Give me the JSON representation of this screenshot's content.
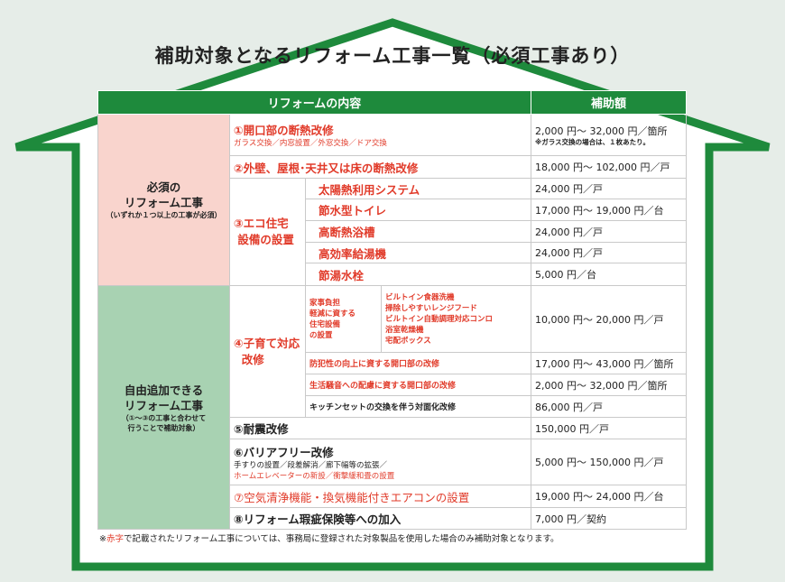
{
  "title": "補助対象となるリフォーム工事一覧（必須工事あり）",
  "colors": {
    "house": "#1e8a3c",
    "header": "#1e8a3c",
    "required_bg": "#f9d4cd",
    "optional_bg": "#a8d2b2",
    "red_text": "#e13b2a"
  },
  "header": {
    "content": "リフォームの内容",
    "amount": "補助額"
  },
  "required": {
    "label1": "必須の",
    "label2": "リフォーム工事",
    "note": "（いずれか１つ以上の工事が必須）"
  },
  "optional": {
    "label1": "自由追加できる",
    "label2": "リフォーム工事",
    "note1": "（①～③の工事と合わせて",
    "note2": "行うことで補助対象）"
  },
  "rows": {
    "r1": {
      "name": "①開口部の断熱改修",
      "sub": "ガラス交換／内窓設置／外窓交換／ドア交換",
      "amount": "2,000 円～ 32,000 円／箇所",
      "amount_note": "※ガラス交換の場合は、１枚あたり。"
    },
    "r2": {
      "name": "②外壁、屋根･天井又は床の断熱改修",
      "amount": "18,000 円～ 102,000 円／戸"
    },
    "r3": {
      "name1": "③エコ住宅",
      "name2": "設備の設置",
      "items": [
        {
          "name": "太陽熱利用システム",
          "amount": "24,000 円／戸"
        },
        {
          "name": "節水型トイレ",
          "amount": "17,000 円～ 19,000 円／台"
        },
        {
          "name": "高断熱浴槽",
          "amount": "24,000 円／戸"
        },
        {
          "name": "高効率給湯機",
          "amount": "24,000 円／戸"
        },
        {
          "name": "節湯水栓",
          "amount": "5,000 円／台"
        }
      ]
    },
    "r4": {
      "name1": "④子育て対応",
      "name2": "改修",
      "housework": {
        "label": [
          "家事負担",
          "軽減に資する",
          "住宅設備",
          "の設置"
        ],
        "items": [
          "ビルトイン食器洗機",
          "掃除しやすいレンジフード",
          "ビルトイン自動調理対応コンロ",
          "浴室乾燥機",
          "宅配ボックス"
        ],
        "amount": "10,000 円～ 20,000 円／戸"
      },
      "others": [
        {
          "name": "防犯性の向上に資する開口部の改修",
          "amount": "17,000 円～ 43,000 円／箇所"
        },
        {
          "name": "生活騒音への配慮に資する開口部の改修",
          "amount": "2,000 円～ 32,000 円／箇所"
        },
        {
          "name": "キッチンセットの交換を伴う対面化改修",
          "amount": "86,000 円／戸"
        }
      ]
    },
    "r5": {
      "name": "⑤耐震改修",
      "amount": "150,000 円／戸"
    },
    "r6": {
      "name": "⑥バリアフリー改修",
      "sub1": "手すりの設置／段差解消／廊下幅等の拡張／",
      "sub2": "ホームエレベーターの新設／衝撃緩和畳の設置",
      "amount": "5,000 円～ 150,000 円／戸"
    },
    "r7": {
      "name": "⑦空気清浄機能・換気機能付きエアコンの設置",
      "amount": "19,000 円～ 24,000 円／台"
    },
    "r8": {
      "name": "⑧リフォーム瑕疵保険等への加入",
      "amount": "7,000 円／契約"
    }
  },
  "footnote": {
    "prefix": "※",
    "red": "赤字",
    "rest": "で記載されたリフォーム工事については、事務局に登録された対象製品を使用した場合のみ補助対象となります。"
  }
}
